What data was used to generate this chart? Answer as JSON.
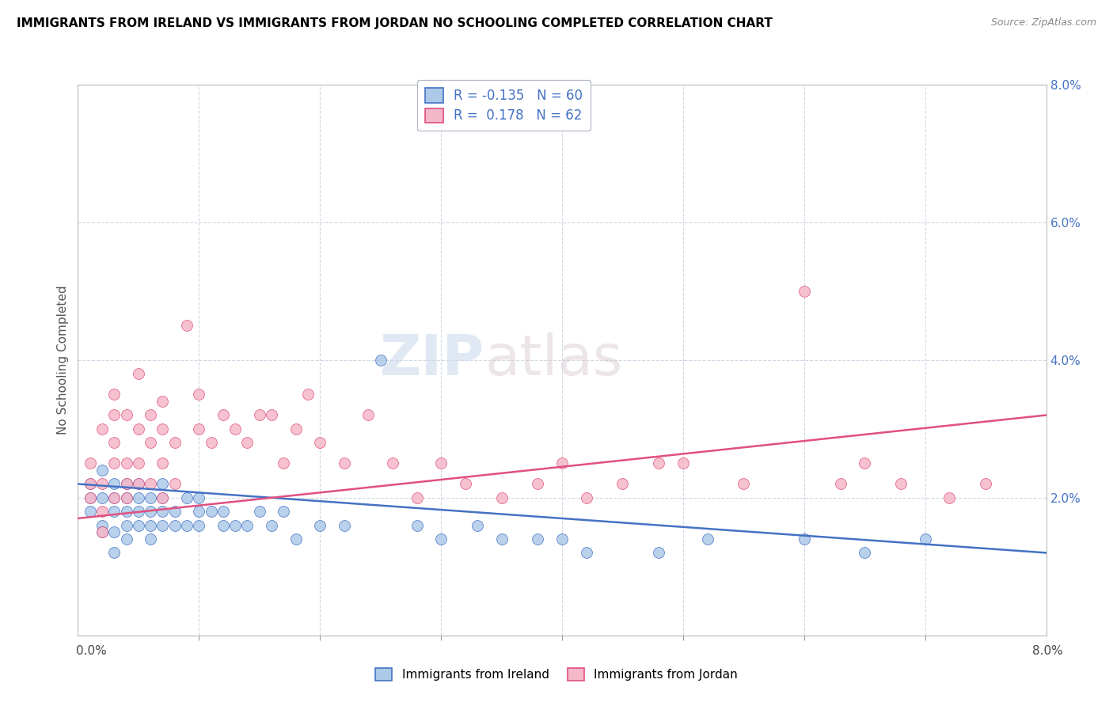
{
  "title": "IMMIGRANTS FROM IRELAND VS IMMIGRANTS FROM JORDAN NO SCHOOLING COMPLETED CORRELATION CHART",
  "source": "Source: ZipAtlas.com",
  "ylabel": "No Schooling Completed",
  "xlim": [
    0.0,
    0.08
  ],
  "ylim": [
    0.0,
    0.08
  ],
  "ytick_values": [
    0.0,
    0.02,
    0.04,
    0.06,
    0.08
  ],
  "ytick_labels": [
    "",
    "2.0%",
    "4.0%",
    "6.0%",
    "8.0%"
  ],
  "legend_R_ireland": "-0.135",
  "legend_N_ireland": "60",
  "legend_R_jordan": "0.178",
  "legend_N_jordan": "62",
  "color_ireland": "#adc9e8",
  "color_jordan": "#f5b8c8",
  "color_ireland_line": "#4472c4",
  "color_jordan_line": "#e05080",
  "watermark_zip": "ZIP",
  "watermark_atlas": "atlas",
  "ireland_x": [
    0.001,
    0.001,
    0.001,
    0.002,
    0.002,
    0.002,
    0.002,
    0.003,
    0.003,
    0.003,
    0.003,
    0.003,
    0.004,
    0.004,
    0.004,
    0.004,
    0.004,
    0.005,
    0.005,
    0.005,
    0.005,
    0.006,
    0.006,
    0.006,
    0.006,
    0.007,
    0.007,
    0.007,
    0.007,
    0.008,
    0.008,
    0.009,
    0.009,
    0.01,
    0.01,
    0.01,
    0.011,
    0.012,
    0.012,
    0.013,
    0.014,
    0.015,
    0.016,
    0.017,
    0.018,
    0.02,
    0.022,
    0.025,
    0.028,
    0.03,
    0.033,
    0.035,
    0.038,
    0.04,
    0.042,
    0.048,
    0.052,
    0.06,
    0.065,
    0.07
  ],
  "ireland_y": [
    0.02,
    0.022,
    0.018,
    0.024,
    0.016,
    0.02,
    0.015,
    0.022,
    0.018,
    0.015,
    0.02,
    0.012,
    0.02,
    0.016,
    0.022,
    0.018,
    0.014,
    0.02,
    0.016,
    0.018,
    0.022,
    0.02,
    0.016,
    0.018,
    0.014,
    0.02,
    0.018,
    0.016,
    0.022,
    0.018,
    0.016,
    0.02,
    0.016,
    0.018,
    0.016,
    0.02,
    0.018,
    0.016,
    0.018,
    0.016,
    0.016,
    0.018,
    0.016,
    0.018,
    0.014,
    0.016,
    0.016,
    0.04,
    0.016,
    0.014,
    0.016,
    0.014,
    0.014,
    0.014,
    0.012,
    0.012,
    0.014,
    0.014,
    0.012,
    0.014
  ],
  "jordan_x": [
    0.001,
    0.001,
    0.001,
    0.002,
    0.002,
    0.002,
    0.002,
    0.003,
    0.003,
    0.003,
    0.003,
    0.003,
    0.004,
    0.004,
    0.004,
    0.004,
    0.005,
    0.005,
    0.005,
    0.005,
    0.006,
    0.006,
    0.006,
    0.007,
    0.007,
    0.007,
    0.007,
    0.008,
    0.008,
    0.009,
    0.01,
    0.01,
    0.011,
    0.012,
    0.013,
    0.014,
    0.015,
    0.016,
    0.017,
    0.018,
    0.019,
    0.02,
    0.022,
    0.024,
    0.026,
    0.028,
    0.03,
    0.032,
    0.035,
    0.038,
    0.04,
    0.042,
    0.045,
    0.048,
    0.05,
    0.055,
    0.06,
    0.063,
    0.065,
    0.068,
    0.072,
    0.075
  ],
  "jordan_y": [
    0.02,
    0.022,
    0.025,
    0.022,
    0.018,
    0.03,
    0.015,
    0.025,
    0.032,
    0.02,
    0.035,
    0.028,
    0.025,
    0.02,
    0.032,
    0.022,
    0.03,
    0.022,
    0.038,
    0.025,
    0.028,
    0.022,
    0.032,
    0.025,
    0.03,
    0.02,
    0.034,
    0.028,
    0.022,
    0.045,
    0.03,
    0.035,
    0.028,
    0.032,
    0.03,
    0.028,
    0.032,
    0.032,
    0.025,
    0.03,
    0.035,
    0.028,
    0.025,
    0.032,
    0.025,
    0.02,
    0.025,
    0.022,
    0.02,
    0.022,
    0.025,
    0.02,
    0.022,
    0.025,
    0.025,
    0.022,
    0.05,
    0.022,
    0.025,
    0.022,
    0.02,
    0.022
  ],
  "ireland_line_x0": 0.0,
  "ireland_line_y0": 0.022,
  "ireland_line_x1": 0.08,
  "ireland_line_y1": 0.012,
  "jordan_line_x0": 0.0,
  "jordan_line_y0": 0.017,
  "jordan_line_x1": 0.08,
  "jordan_line_y1": 0.032
}
